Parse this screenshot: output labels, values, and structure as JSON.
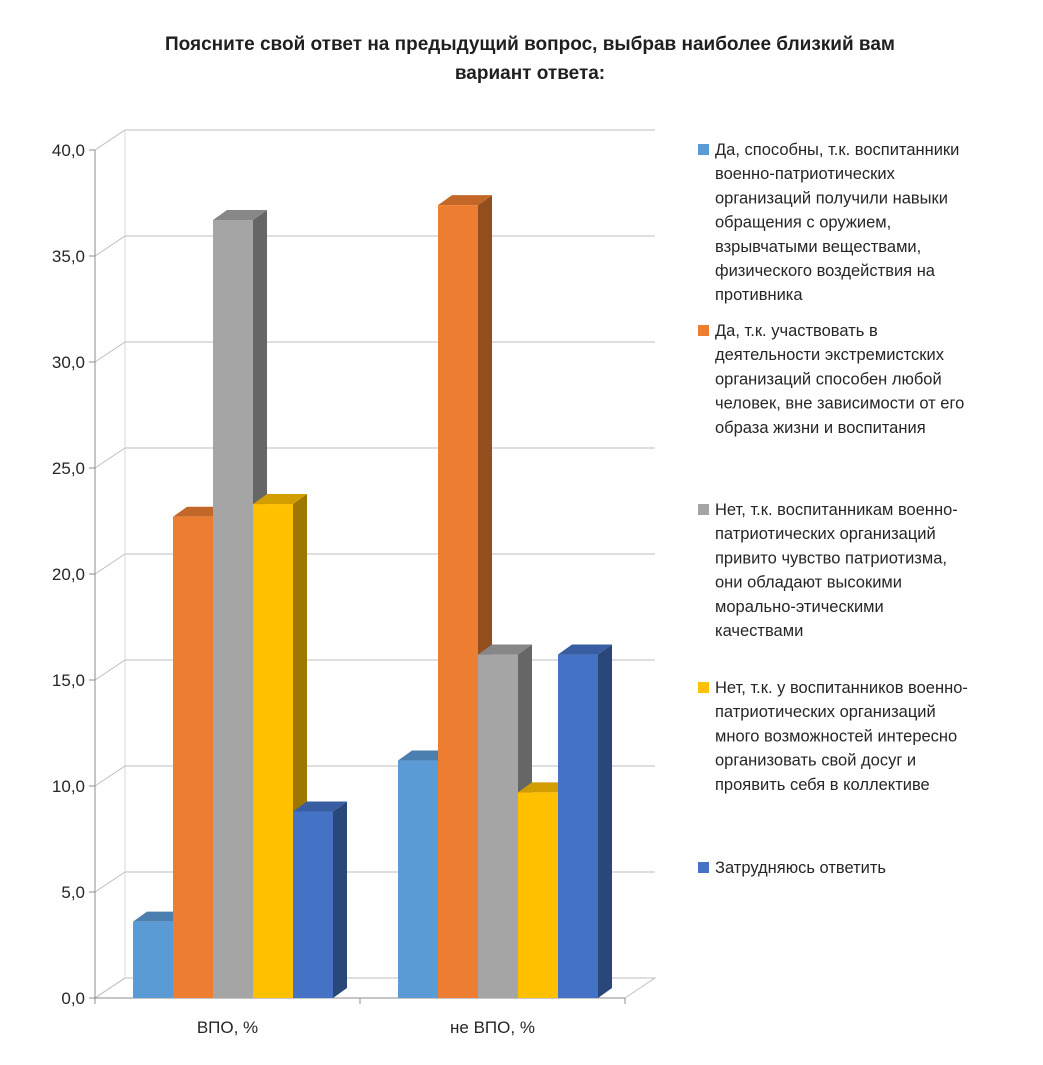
{
  "chart_data": {
    "type": "bar",
    "title_lines": [
      "Поясните свой ответ на предыдущий вопрос, выбрав наиболее близкий вам",
      "вариант ответа:"
    ],
    "categories": [
      "ВПО, %",
      "не ВПО, %"
    ],
    "ylim": [
      0,
      40
    ],
    "y_ticks": [
      "0,0",
      "5,0",
      "10,0",
      "15,0",
      "20,0",
      "25,0",
      "30,0",
      "35,0",
      "40,0"
    ],
    "y_tick_values": [
      0,
      5,
      10,
      15,
      20,
      25,
      30,
      35,
      40
    ],
    "grid": true,
    "three_d": true,
    "legend_position": "right",
    "series": [
      {
        "name": "Да, способны, т.к. воспитанники военно-патриотических организаций получили навыки обращения с оружием, взрывчатыми веществами, физического воздействия на противника",
        "legend_lines": [
          "Да, способны, т.к. воспитанники",
          "военно-патриотических",
          "организаций получили навыки",
          "обращения с оружием,",
          "взрывчатыми веществами,",
          "физического воздействия на",
          "противника"
        ],
        "color": "#5b9bd5",
        "values": [
          3.6,
          11.2
        ]
      },
      {
        "name": "Да, т.к. участвовать в деятельности экстремистских организаций способен любой человек, вне зависимости от его образа жизни и воспитания",
        "legend_lines": [
          "Да, т.к. участвовать в",
          "деятельности экстремистских",
          "организаций способен любой",
          "человек, вне зависимости от его",
          "образа жизни и воспитания"
        ],
        "color": "#ed7d31",
        "values": [
          22.7,
          37.4
        ]
      },
      {
        "name": "Нет, т.к. воспитанникам военно-патриотических организаций привито чувство патриотизма, они обладают высокими морально-этическими качествами",
        "legend_lines": [
          "Нет, т.к. воспитанникам военно-",
          "патриотических организаций",
          "привито чувство патриотизма,",
          "они обладают высокими",
          "морально-этическими",
          "качествами"
        ],
        "color": "#a5a5a5",
        "values": [
          36.7,
          16.2
        ]
      },
      {
        "name": "Нет, т.к. у воспитанников военно-патриотических организаций много возможностей интересно организовать свой досуг и проявить себя в коллективе",
        "legend_lines": [
          "Нет, т.к. у воспитанников военно-",
          "патриотических организаций",
          "много возможностей интересно",
          "организовать свой досуг и",
          "проявить себя в коллективе"
        ],
        "color": "#ffc000",
        "values": [
          23.3,
          9.7
        ]
      },
      {
        "name": "Затрудняюсь ответить",
        "legend_lines": [
          "Затрудняюсь ответить"
        ],
        "color": "#4472c4",
        "values": [
          8.8,
          16.2
        ]
      }
    ]
  }
}
